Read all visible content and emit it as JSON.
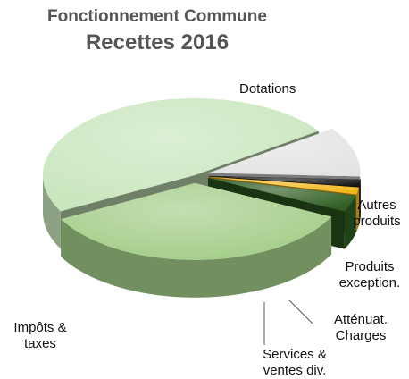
{
  "chart_data": {
    "type": "pie",
    "title": "Fonctionnement Commune",
    "subtitle": "Recettes 2016",
    "slices": [
      {
        "label": "Dotations",
        "value": 48,
        "color": "#c9e6bd",
        "exploded": false
      },
      {
        "label": "Autres produits",
        "value": 10.5,
        "color": "#e4e4e4",
        "exploded": true
      },
      {
        "label": "Produits exception.",
        "value": 1.5,
        "color": "#1a1a1a",
        "exploded": true
      },
      {
        "label": "Atténuat. Charges",
        "value": 1.5,
        "color": "#f3b61c",
        "exploded": true
      },
      {
        "label": "Services & ventes div.",
        "value": 3.5,
        "color": "#2f5d22",
        "exploded": true
      },
      {
        "label": "Impôts & taxes",
        "value": 35,
        "color": "#a3cd88",
        "exploded": true
      }
    ]
  }
}
